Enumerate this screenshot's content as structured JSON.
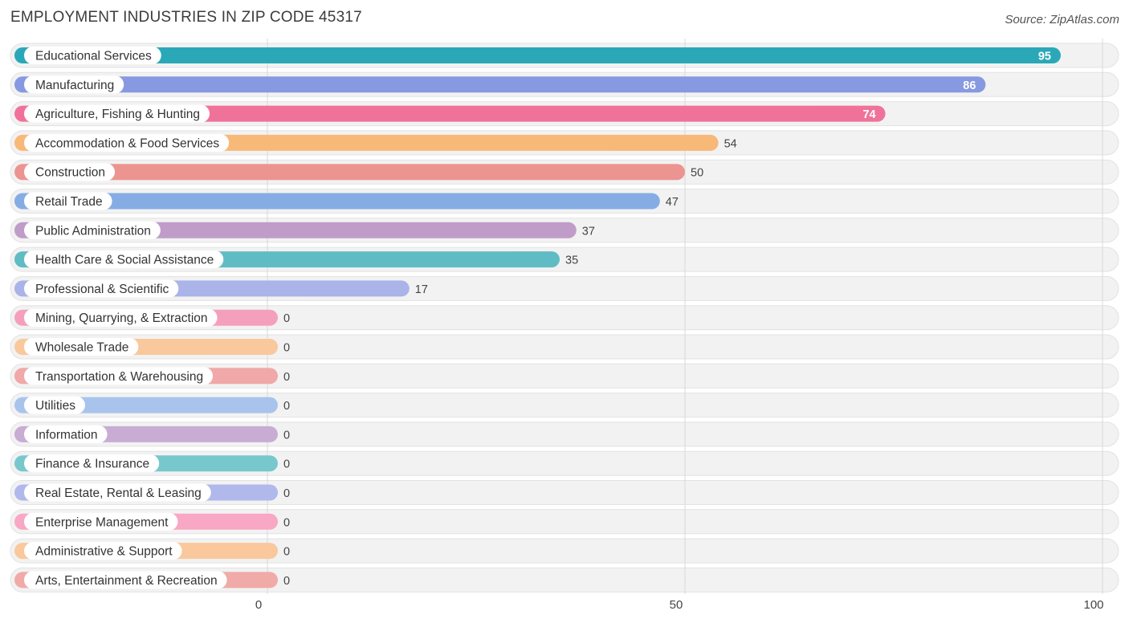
{
  "header": {
    "title": "EMPLOYMENT INDUSTRIES IN ZIP CODE 45317",
    "source": "Source: ZipAtlas.com"
  },
  "chart_data": {
    "type": "bar",
    "orientation": "horizontal",
    "title": "EMPLOYMENT INDUSTRIES IN ZIP CODE 45317",
    "xlim": [
      0,
      100
    ],
    "xticks": [
      0,
      50,
      100
    ],
    "grid": true,
    "categories": [
      "Educational Services",
      "Manufacturing",
      "Agriculture, Fishing & Hunting",
      "Accommodation & Food Services",
      "Construction",
      "Retail Trade",
      "Public Administration",
      "Health Care & Social Assistance",
      "Professional & Scientific",
      "Mining, Quarrying, & Extraction",
      "Wholesale Trade",
      "Transportation & Warehousing",
      "Utilities",
      "Information",
      "Finance & Insurance",
      "Real Estate, Rental & Leasing",
      "Enterprise Management",
      "Administrative & Support",
      "Arts, Entertainment & Recreation"
    ],
    "values": [
      95,
      86,
      74,
      54,
      50,
      47,
      37,
      35,
      17,
      0,
      0,
      0,
      0,
      0,
      0,
      0,
      0,
      0,
      0
    ],
    "colors": [
      "#2aa8b8",
      "#8799e0",
      "#f0729a",
      "#f8b878",
      "#ec9490",
      "#86ace4",
      "#c09cc8",
      "#5fbcc4",
      "#aab4e8",
      "#f4a0bc",
      "#f9c89c",
      "#f0a8a8",
      "#a8c4ec",
      "#c8acd4",
      "#76c8cc",
      "#b0b8ec",
      "#f8a8c4",
      "#f9c89c",
      "#f0aaa8"
    ]
  }
}
